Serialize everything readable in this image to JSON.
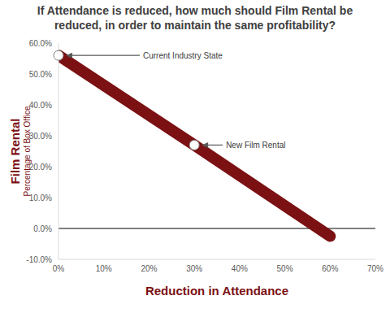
{
  "chart_data": {
    "type": "line",
    "title": "If Attendance is reduced, how much should Film Rental be reduced, in order to maintain the same profitability?",
    "xlabel": "Reduction in Attendance",
    "ylabel": [
      "Film Rental",
      "Percentage of Box Office"
    ],
    "x": [
      0,
      30,
      60
    ],
    "values": [
      56,
      27,
      -2.5
    ],
    "color": "#7b1113",
    "xlim": [
      0,
      70
    ],
    "xticks": [
      {
        "value": 0,
        "label": "0%"
      },
      {
        "value": 10,
        "label": "10%"
      },
      {
        "value": 20,
        "label": "20%"
      },
      {
        "value": 30,
        "label": "30%"
      },
      {
        "value": 40,
        "label": "40%"
      },
      {
        "value": 50,
        "label": "50%"
      },
      {
        "value": 60,
        "label": "60%"
      },
      {
        "value": 70,
        "label": "70%"
      }
    ],
    "ylim": [
      -10,
      60
    ],
    "yticks": [
      {
        "value": -10,
        "label": "-10.0%"
      },
      {
        "value": 0,
        "label": "0.0%"
      },
      {
        "value": 10,
        "label": "10.0%"
      },
      {
        "value": 20,
        "label": "20.0%"
      },
      {
        "value": 30,
        "label": "30.0%"
      },
      {
        "value": 40,
        "label": "40.0%"
      },
      {
        "value": 50,
        "label": "50.0%"
      },
      {
        "value": 60,
        "label": "60.0%"
      }
    ],
    "annotations": [
      {
        "text": "Current Industry State",
        "x": 0,
        "y": 56
      },
      {
        "text": "New Film Rental",
        "x": 30,
        "y": 27
      }
    ],
    "grid": false
  }
}
